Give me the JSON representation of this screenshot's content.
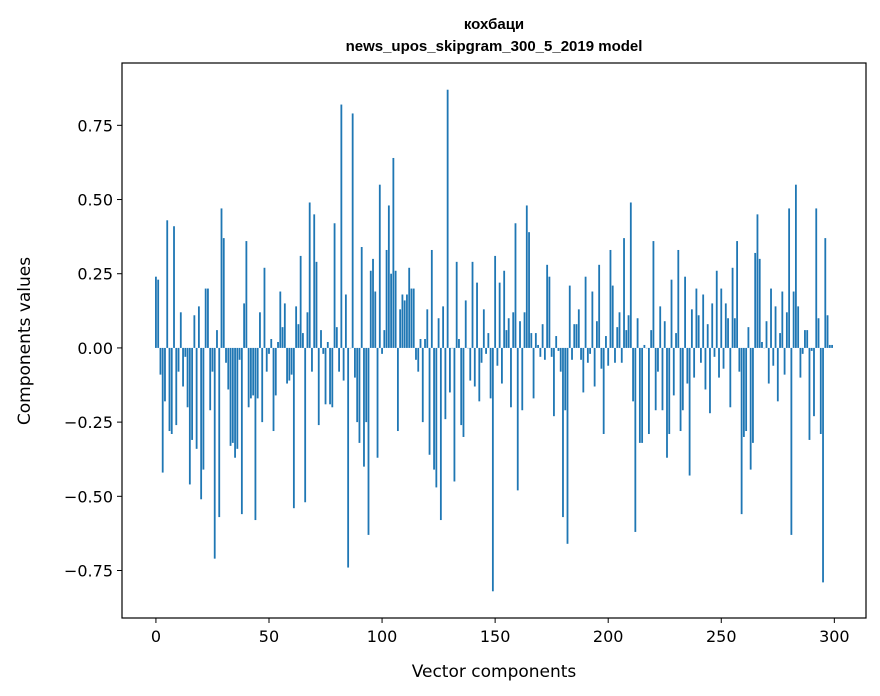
{
  "chart_data": {
    "type": "bar",
    "title": [
      "кохбаци",
      "news_upos_skipgram_300_5_2019 model"
    ],
    "xlabel": "Vector components",
    "ylabel": "Components values",
    "xlim": [
      -15,
      314
    ],
    "ylim": [
      -0.91,
      0.96
    ],
    "xticks": [
      0,
      50,
      100,
      150,
      200,
      250,
      300
    ],
    "yticks": [
      -0.75,
      -0.5,
      -0.25,
      0.0,
      0.25,
      0.5,
      0.75
    ],
    "xtick_labels": [
      "0",
      "50",
      "100",
      "150",
      "200",
      "250",
      "300"
    ],
    "ytick_labels": [
      "−0.75",
      "−0.50",
      "−0.25",
      "0.00",
      "0.25",
      "0.50",
      "0.75"
    ],
    "color": "#1f77b4",
    "grid": false,
    "values": [
      0.24,
      0.23,
      -0.09,
      -0.42,
      -0.18,
      0.43,
      -0.28,
      -0.29,
      0.41,
      -0.26,
      -0.08,
      0.12,
      -0.13,
      -0.03,
      -0.2,
      -0.46,
      -0.31,
      0.11,
      -0.34,
      0.14,
      -0.51,
      -0.41,
      0.2,
      0.2,
      -0.21,
      -0.08,
      -0.71,
      0.06,
      -0.57,
      0.47,
      0.37,
      -0.05,
      -0.14,
      -0.33,
      -0.32,
      -0.37,
      -0.34,
      -0.04,
      -0.56,
      0.15,
      0.36,
      -0.2,
      -0.17,
      -0.16,
      -0.58,
      -0.17,
      0.12,
      -0.25,
      0.27,
      -0.08,
      -0.02,
      0.03,
      -0.28,
      -0.16,
      0.02,
      0.19,
      0.07,
      0.15,
      -0.12,
      -0.11,
      -0.09,
      -0.54,
      0.14,
      0.08,
      0.31,
      0.05,
      -0.52,
      0.12,
      0.49,
      -0.08,
      0.45,
      0.29,
      -0.26,
      0.06,
      -0.02,
      -0.19,
      0.02,
      -0.19,
      -0.2,
      0.42,
      0.07,
      -0.08,
      0.82,
      -0.11,
      0.18,
      -0.74,
      0.0,
      0.79,
      -0.1,
      -0.25,
      -0.32,
      0.34,
      -0.4,
      -0.25,
      -0.63,
      0.26,
      0.3,
      0.19,
      -0.37,
      0.55,
      -0.02,
      0.06,
      0.33,
      0.48,
      0.25,
      0.64,
      0.26,
      -0.28,
      0.13,
      0.18,
      0.16,
      0.18,
      0.27,
      0.2,
      0.2,
      -0.04,
      -0.08,
      0.03,
      -0.25,
      0.03,
      0.13,
      -0.36,
      0.33,
      -0.41,
      -0.47,
      0.1,
      -0.58,
      0.14,
      -0.24,
      0.87,
      -0.15,
      0.0,
      -0.45,
      0.29,
      0.03,
      -0.26,
      -0.3,
      0.16,
      0.0,
      -0.11,
      0.29,
      -0.13,
      0.22,
      -0.18,
      -0.05,
      0.13,
      -0.02,
      0.05,
      -0.17,
      -0.82,
      0.31,
      -0.06,
      0.22,
      -0.12,
      0.26,
      0.06,
      0.1,
      -0.2,
      0.12,
      0.42,
      -0.48,
      0.09,
      -0.21,
      0.12,
      0.48,
      0.39,
      0.05,
      -0.17,
      0.05,
      0.01,
      -0.03,
      0.08,
      -0.04,
      0.28,
      0.24,
      -0.03,
      -0.23,
      0.04,
      -0.01,
      -0.08,
      -0.57,
      -0.21,
      -0.66,
      0.21,
      -0.04,
      0.08,
      0.08,
      0.13,
      -0.04,
      -0.15,
      0.24,
      -0.05,
      -0.02,
      0.19,
      -0.13,
      0.09,
      0.28,
      -0.07,
      -0.29,
      0.04,
      -0.06,
      0.33,
      0.21,
      -0.05,
      0.07,
      0.12,
      -0.05,
      0.37,
      0.06,
      0.11,
      0.49,
      -0.18,
      -0.62,
      0.1,
      -0.32,
      -0.32,
      0.01,
      0.0,
      -0.29,
      0.06,
      0.36,
      -0.21,
      -0.08,
      0.14,
      -0.21,
      0.09,
      -0.37,
      -0.29,
      0.23,
      -0.16,
      0.05,
      0.33,
      -0.28,
      -0.21,
      0.24,
      -0.12,
      -0.43,
      0.13,
      -0.1,
      0.2,
      0.11,
      -0.05,
      0.18,
      -0.14,
      0.08,
      -0.22,
      0.15,
      -0.03,
      0.26,
      -0.1,
      0.2,
      -0.07,
      0.15,
      0.1,
      -0.2,
      0.27,
      0.1,
      0.36,
      -0.08,
      -0.56,
      -0.3,
      -0.28,
      0.07,
      -0.41,
      -0.32,
      0.32,
      0.45,
      0.3,
      0.02,
      0.0,
      0.09,
      -0.12,
      0.2,
      -0.06,
      0.14,
      -0.18,
      0.05,
      0.19,
      -0.09,
      0.12,
      0.47,
      -0.63,
      0.19,
      0.55,
      0.14,
      -0.1,
      -0.02,
      0.06,
      0.06,
      -0.31,
      -0.01,
      -0.23,
      0.47,
      0.1,
      -0.29,
      -0.79,
      0.37,
      0.11,
      0.01,
      0.01
    ]
  }
}
